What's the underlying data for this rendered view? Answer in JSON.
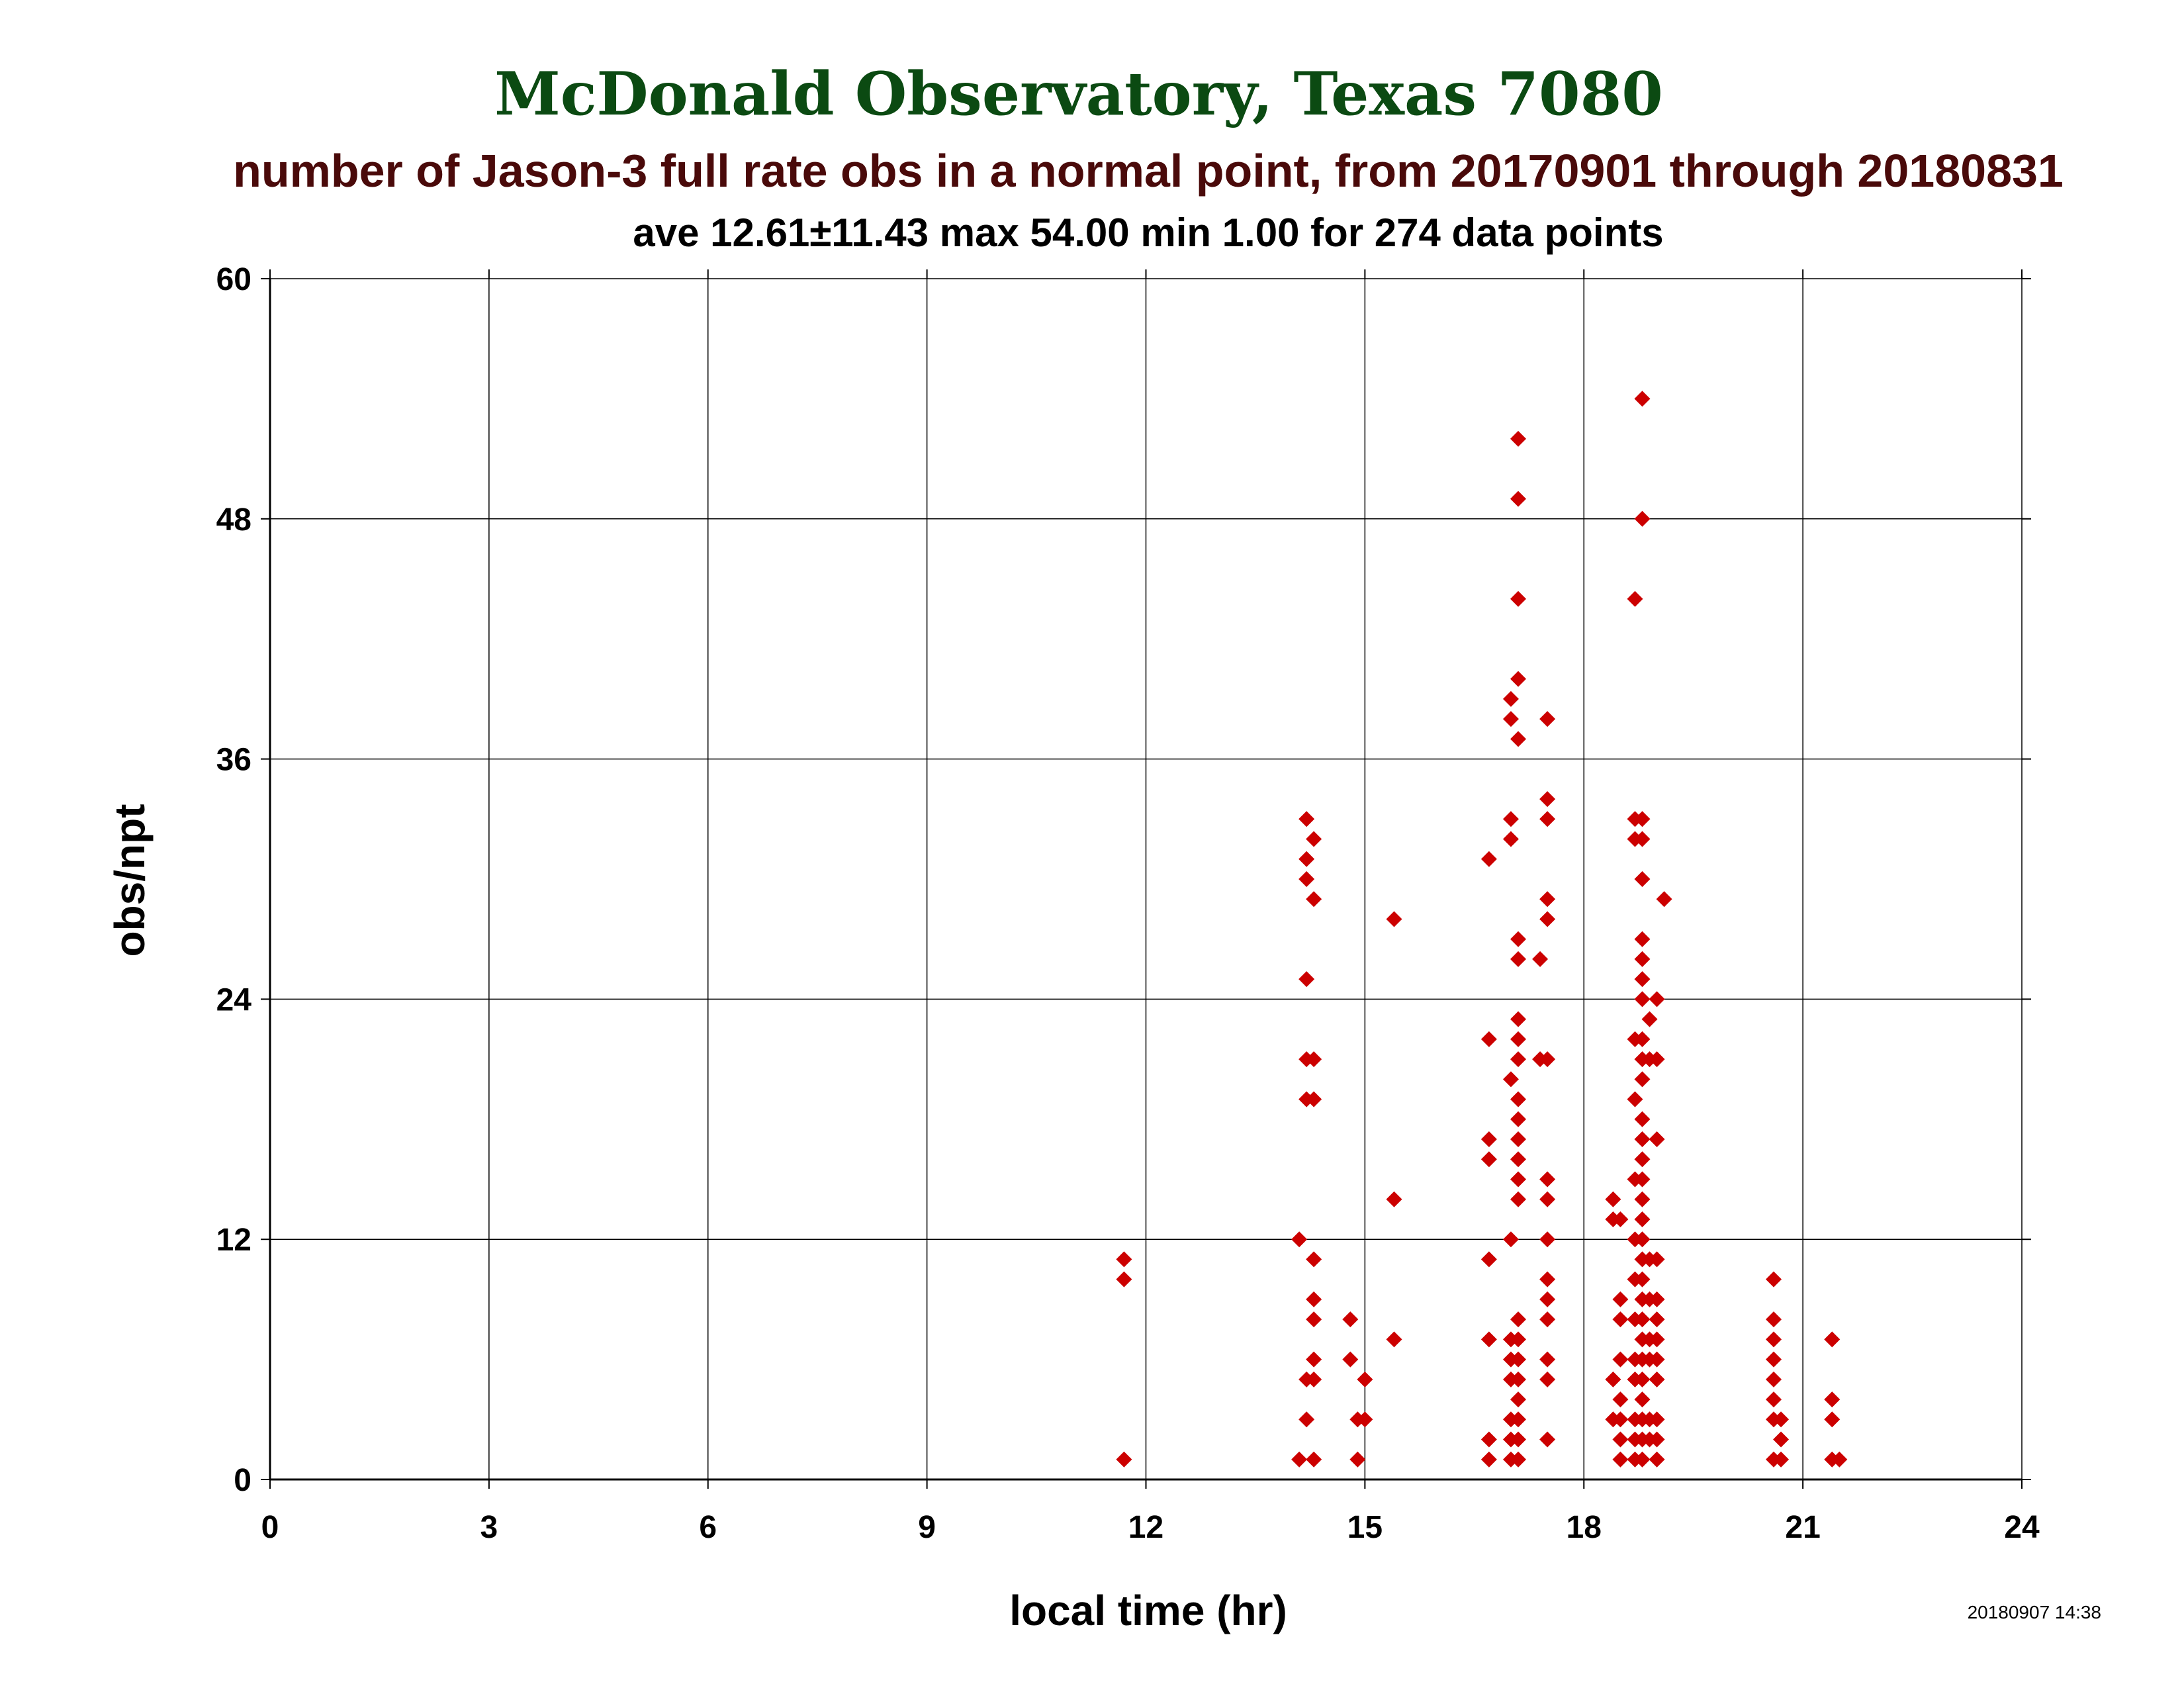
{
  "chart_data": {
    "type": "scatter",
    "title": "McDonald Observatory, Texas 7080",
    "subtitle": "number of Jason-3 full rate obs in a normal point, from 20170901 through 20180831",
    "stats_line": "ave 12.61±11.43 max 54.00 min 1.00 for 274 data points",
    "xlabel": "local time (hr)",
    "ylabel": "obs/npt",
    "timestamp": "20180907 14:38",
    "xlim": [
      0,
      24
    ],
    "ylim": [
      0,
      60
    ],
    "x_ticks": [
      "0",
      "3",
      "6",
      "9",
      "12",
      "15",
      "18",
      "21",
      "24"
    ],
    "y_ticks": [
      "0",
      "12",
      "24",
      "36",
      "48",
      "60"
    ],
    "grid": true,
    "colors": {
      "title": "#0b4a12",
      "subtitle": "#4a0a0a",
      "marker": "#cc0000"
    },
    "series": [
      {
        "marker": "diamond",
        "points": [
          [
            11.7,
            1
          ],
          [
            11.7,
            11
          ],
          [
            11.7,
            10
          ],
          [
            14.1,
            12
          ],
          [
            14.2,
            33
          ],
          [
            14.2,
            31
          ],
          [
            14.2,
            30
          ],
          [
            14.2,
            25
          ],
          [
            14.2,
            21
          ],
          [
            14.3,
            21
          ],
          [
            14.2,
            19
          ],
          [
            14.3,
            19
          ],
          [
            14.3,
            32
          ],
          [
            14.3,
            29
          ],
          [
            14.3,
            11
          ],
          [
            14.3,
            9
          ],
          [
            14.3,
            8
          ],
          [
            14.3,
            6
          ],
          [
            14.2,
            5
          ],
          [
            14.3,
            5
          ],
          [
            14.2,
            3
          ],
          [
            14.1,
            1
          ],
          [
            14.3,
            1
          ],
          [
            14.8,
            8
          ],
          [
            14.8,
            6
          ],
          [
            14.9,
            3
          ],
          [
            14.9,
            1
          ],
          [
            15.0,
            5
          ],
          [
            15.0,
            3
          ],
          [
            15.4,
            28
          ],
          [
            15.4,
            14
          ],
          [
            15.4,
            7
          ],
          [
            16.7,
            31
          ],
          [
            16.7,
            22
          ],
          [
            16.7,
            17
          ],
          [
            16.7,
            16
          ],
          [
            16.7,
            11
          ],
          [
            16.7,
            7
          ],
          [
            16.7,
            2
          ],
          [
            16.7,
            1
          ],
          [
            17.0,
            39
          ],
          [
            17.0,
            38
          ],
          [
            17.0,
            33
          ],
          [
            17.0,
            32
          ],
          [
            17.0,
            20
          ],
          [
            17.0,
            12
          ],
          [
            17.0,
            7
          ],
          [
            17.0,
            6
          ],
          [
            17.0,
            5
          ],
          [
            17.0,
            3
          ],
          [
            17.0,
            2
          ],
          [
            17.0,
            1
          ],
          [
            17.1,
            52
          ],
          [
            17.1,
            49
          ],
          [
            17.1,
            44
          ],
          [
            17.1,
            40
          ],
          [
            17.1,
            37
          ],
          [
            17.1,
            27
          ],
          [
            17.1,
            26
          ],
          [
            17.1,
            23
          ],
          [
            17.1,
            22
          ],
          [
            17.1,
            21
          ],
          [
            17.1,
            19
          ],
          [
            17.1,
            18
          ],
          [
            17.1,
            17
          ],
          [
            17.1,
            16
          ],
          [
            17.1,
            15
          ],
          [
            17.1,
            14
          ],
          [
            17.1,
            8
          ],
          [
            17.1,
            7
          ],
          [
            17.1,
            6
          ],
          [
            17.1,
            5
          ],
          [
            17.1,
            4
          ],
          [
            17.1,
            3
          ],
          [
            17.1,
            2
          ],
          [
            17.1,
            1
          ],
          [
            17.4,
            26
          ],
          [
            17.4,
            21
          ],
          [
            17.5,
            38
          ],
          [
            17.5,
            34
          ],
          [
            17.5,
            33
          ],
          [
            17.5,
            29
          ],
          [
            17.5,
            28
          ],
          [
            17.5,
            21
          ],
          [
            17.5,
            15
          ],
          [
            17.5,
            14
          ],
          [
            17.5,
            12
          ],
          [
            17.5,
            10
          ],
          [
            17.5,
            9
          ],
          [
            17.5,
            8
          ],
          [
            17.5,
            6
          ],
          [
            17.5,
            5
          ],
          [
            17.5,
            2
          ],
          [
            18.4,
            14
          ],
          [
            18.4,
            13
          ],
          [
            18.4,
            5
          ],
          [
            18.4,
            3
          ],
          [
            18.5,
            13
          ],
          [
            18.5,
            9
          ],
          [
            18.5,
            8
          ],
          [
            18.5,
            6
          ],
          [
            18.5,
            4
          ],
          [
            18.5,
            3
          ],
          [
            18.5,
            2
          ],
          [
            18.5,
            1
          ],
          [
            18.7,
            44
          ],
          [
            18.7,
            33
          ],
          [
            18.7,
            32
          ],
          [
            18.7,
            22
          ],
          [
            18.7,
            19
          ],
          [
            18.7,
            15
          ],
          [
            18.7,
            12
          ],
          [
            18.7,
            10
          ],
          [
            18.7,
            8
          ],
          [
            18.7,
            6
          ],
          [
            18.7,
            5
          ],
          [
            18.7,
            3
          ],
          [
            18.7,
            2
          ],
          [
            18.7,
            1
          ],
          [
            18.8,
            54
          ],
          [
            18.8,
            48
          ],
          [
            18.8,
            33
          ],
          [
            18.8,
            32
          ],
          [
            18.8,
            30
          ],
          [
            18.8,
            27
          ],
          [
            18.8,
            26
          ],
          [
            18.8,
            25
          ],
          [
            18.8,
            24
          ],
          [
            18.8,
            22
          ],
          [
            18.8,
            21
          ],
          [
            18.8,
            20
          ],
          [
            18.8,
            18
          ],
          [
            18.8,
            17
          ],
          [
            18.8,
            16
          ],
          [
            18.8,
            15
          ],
          [
            18.8,
            14
          ],
          [
            18.8,
            13
          ],
          [
            18.8,
            12
          ],
          [
            18.8,
            11
          ],
          [
            18.8,
            10
          ],
          [
            18.8,
            9
          ],
          [
            18.8,
            8
          ],
          [
            18.8,
            7
          ],
          [
            18.8,
            6
          ],
          [
            18.8,
            5
          ],
          [
            18.8,
            4
          ],
          [
            18.8,
            3
          ],
          [
            18.8,
            2
          ],
          [
            18.8,
            1
          ],
          [
            18.9,
            23
          ],
          [
            18.9,
            21
          ],
          [
            18.9,
            11
          ],
          [
            18.9,
            9
          ],
          [
            18.9,
            7
          ],
          [
            18.9,
            6
          ],
          [
            18.9,
            3
          ],
          [
            18.9,
            2
          ],
          [
            19.0,
            24
          ],
          [
            19.0,
            21
          ],
          [
            19.0,
            17
          ],
          [
            19.0,
            11
          ],
          [
            19.0,
            9
          ],
          [
            19.0,
            8
          ],
          [
            19.0,
            7
          ],
          [
            19.0,
            6
          ],
          [
            19.0,
            5
          ],
          [
            19.0,
            3
          ],
          [
            19.0,
            2
          ],
          [
            19.0,
            1
          ],
          [
            19.1,
            29
          ],
          [
            20.6,
            10
          ],
          [
            20.6,
            8
          ],
          [
            20.6,
            7
          ],
          [
            20.6,
            6
          ],
          [
            20.6,
            5
          ],
          [
            20.6,
            4
          ],
          [
            20.6,
            3
          ],
          [
            20.6,
            1
          ],
          [
            20.7,
            3
          ],
          [
            20.7,
            2
          ],
          [
            20.7,
            1
          ],
          [
            21.4,
            7
          ],
          [
            21.4,
            4
          ],
          [
            21.4,
            3
          ],
          [
            21.4,
            1
          ],
          [
            21.5,
            1
          ]
        ]
      }
    ]
  }
}
